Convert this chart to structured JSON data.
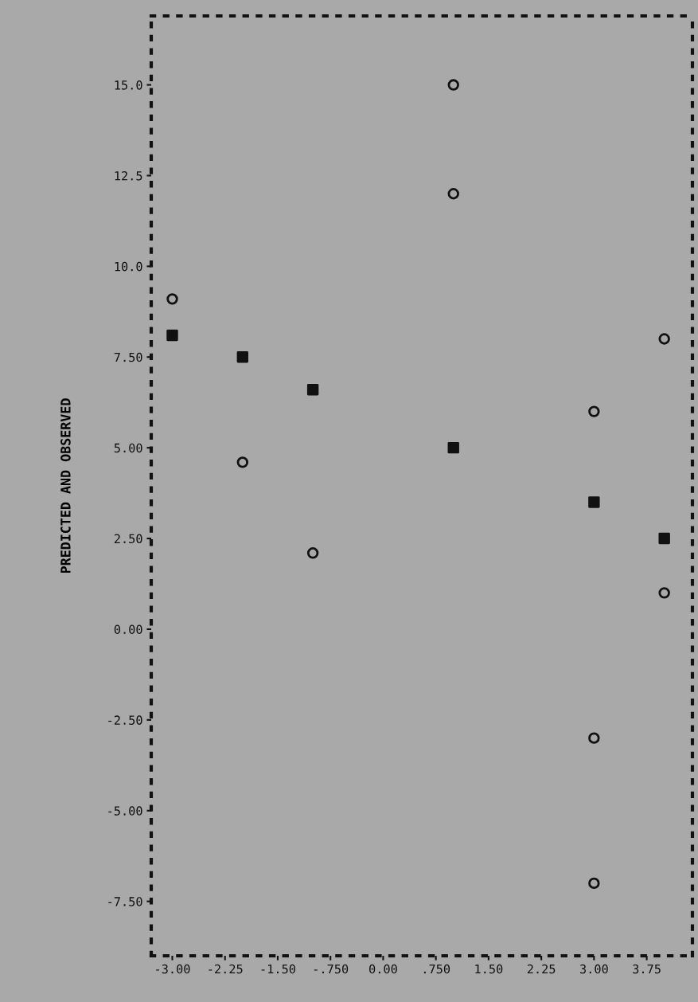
{
  "chart_data": {
    "type": "scatter",
    "ylabel": "PREDICTED AND OBSERVED",
    "series": [
      {
        "color": "#111111",
        "marker": "circle",
        "x": [
          -3,
          -2,
          -1,
          1,
          1,
          3,
          3,
          3,
          4,
          4
        ],
        "values": [
          9.1,
          4.6,
          2.1,
          15.0,
          12.0,
          6.0,
          -3.0,
          -7.0,
          8.0,
          1.0
        ]
      },
      {
        "color": "#111111",
        "marker": "square",
        "x": [
          -3,
          -2,
          -1,
          1,
          3,
          4
        ],
        "values": [
          8.1,
          7.5,
          6.6,
          5.0,
          3.5,
          2.5
        ]
      }
    ],
    "xlim": [
      -3.3,
      4.4
    ],
    "ylim": [
      -9.0,
      16.9
    ],
    "xticks": [
      {
        "value": -3.0,
        "label": "-3.00"
      },
      {
        "value": -2.25,
        "label": "-2.25"
      },
      {
        "value": -1.5,
        "label": "-1.50"
      },
      {
        "value": -0.75,
        "label": "-.750"
      },
      {
        "value": 0,
        "label": "0.00"
      },
      {
        "value": 0.75,
        "label": ".750"
      },
      {
        "value": 1.5,
        "label": "1.50"
      },
      {
        "value": 2.25,
        "label": "2.25"
      },
      {
        "value": 3.0,
        "label": "3.00"
      },
      {
        "value": 3.75,
        "label": "3.75"
      }
    ],
    "yticks": [
      {
        "value": 15.0,
        "label": "15.0"
      },
      {
        "value": 12.5,
        "label": "12.5"
      },
      {
        "value": 10.0,
        "label": "10.0"
      },
      {
        "value": 7.5,
        "label": "7.50"
      },
      {
        "value": 5.0,
        "label": "5.00"
      },
      {
        "value": 2.5,
        "label": "2.50"
      },
      {
        "value": 0,
        "label": "0.00"
      },
      {
        "value": -2.5,
        "label": "-2.50"
      },
      {
        "value": -5.0,
        "label": "-5.00"
      },
      {
        "value": -7.5,
        "label": "-7.50"
      }
    ],
    "grid": false
  }
}
